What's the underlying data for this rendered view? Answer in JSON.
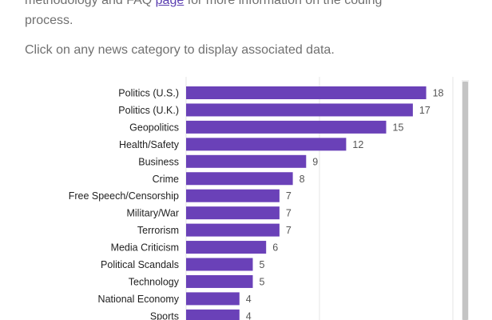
{
  "intro": {
    "line1_prefix": "methodology and FAQ ",
    "line1_link": "page",
    "line1_suffix": " for more information on the coding",
    "line2": "process."
  },
  "instruction": "Click on any news category to display associated data.",
  "colors": {
    "bar": "#6a41b8",
    "label_text": "#222222",
    "value_text": "#555555",
    "gridline": "#e6e6e6"
  },
  "chart_data": {
    "type": "bar",
    "orientation": "horizontal",
    "categories": [
      "Politics (U.S.)",
      "Politics (U.K.)",
      "Geopolitics",
      "Health/Safety",
      "Business",
      "Crime",
      "Free Speech/Censorship",
      "Military/War",
      "Terrorism",
      "Media Criticism",
      "Political Scandals",
      "Technology",
      "National Economy",
      "Sports"
    ],
    "values": [
      18,
      17,
      15,
      12,
      9,
      8,
      7,
      7,
      7,
      6,
      5,
      5,
      4,
      4
    ],
    "title": "",
    "xlabel": "",
    "ylabel": "",
    "xlim": [
      0,
      20
    ],
    "gridlines": [
      0,
      10,
      20
    ],
    "grid": true,
    "data_labels": true
  }
}
